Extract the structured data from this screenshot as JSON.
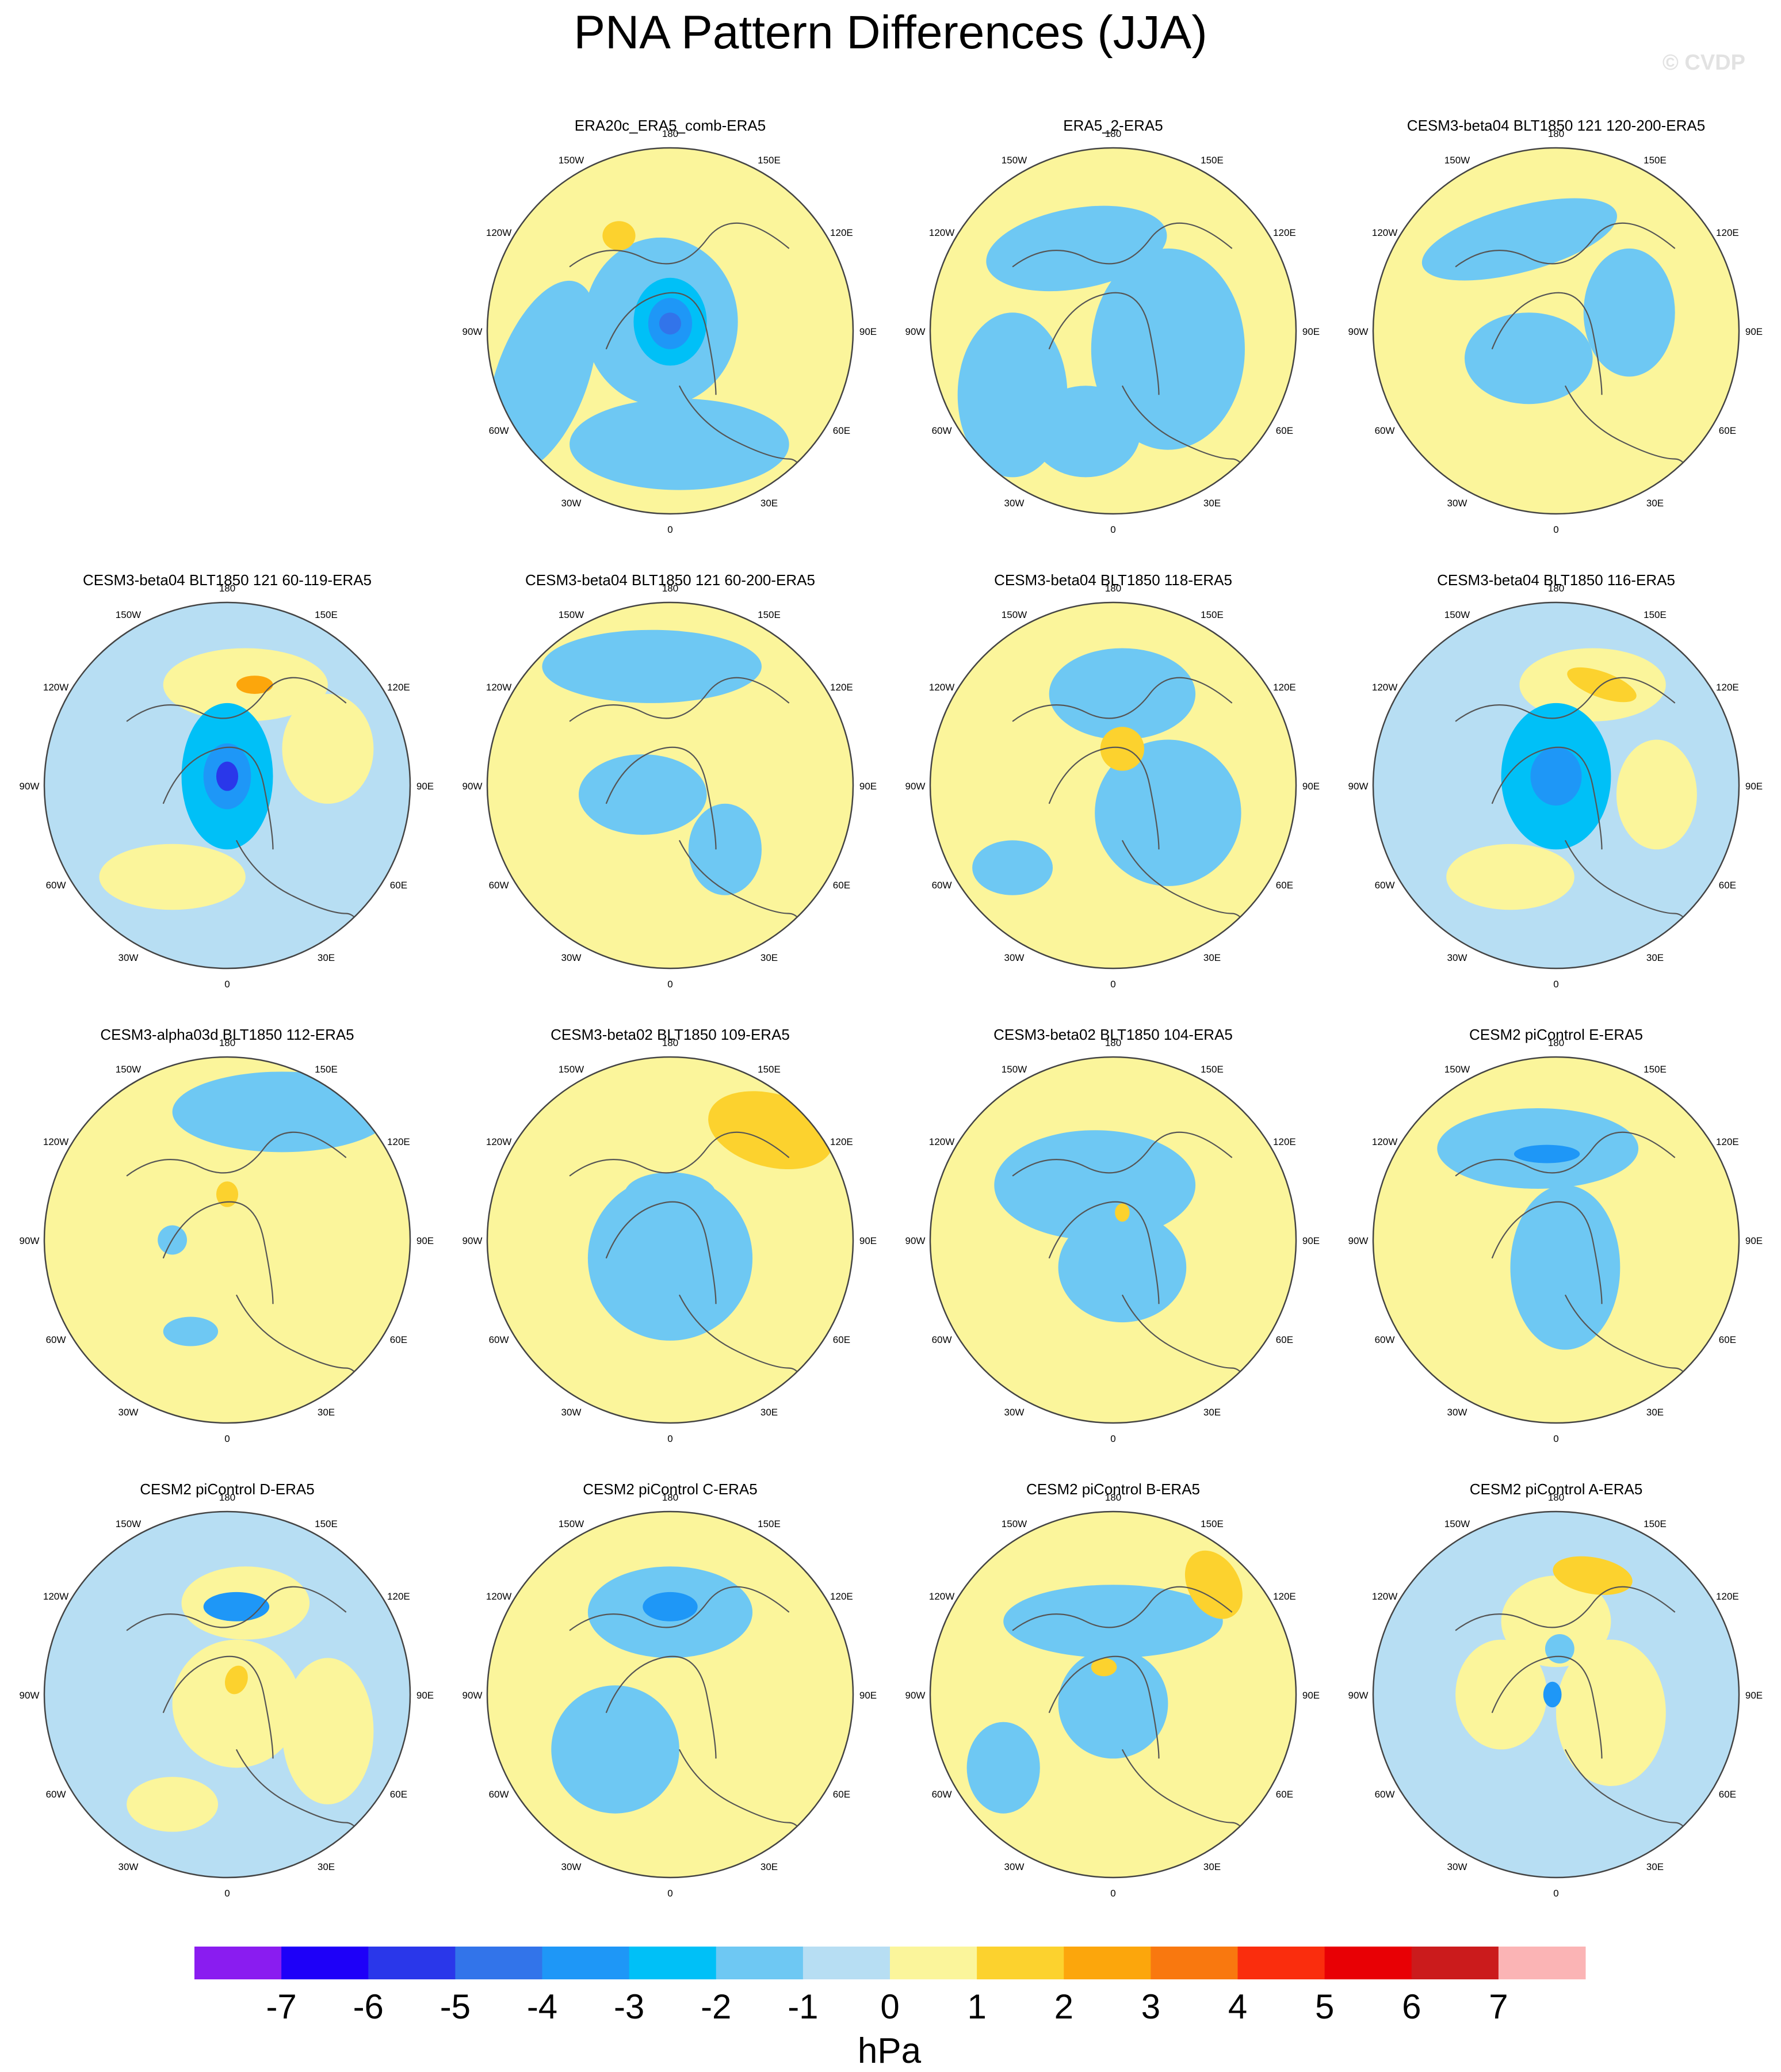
{
  "title": "PNA Pattern Differences (JJA)",
  "watermark": "© CVDP",
  "lon_labels": [
    "180",
    "150E",
    "120E",
    "90E",
    "60E",
    "30E",
    "0",
    "30W",
    "60W",
    "90W",
    "120W",
    "150W"
  ],
  "panels": [
    {
      "title": "ERA20c_ERA5_comb-ERA5",
      "background": "yellow"
    },
    {
      "title": "ERA5_2-ERA5",
      "background": "yellow"
    },
    {
      "title": "CESM3-beta04 BLT1850 121 120-200-ERA5",
      "background": "yellow"
    },
    {
      "title": "CESM3-beta04 BLT1850 121 60-119-ERA5",
      "background": "blue"
    },
    {
      "title": "CESM3-beta04 BLT1850 121 60-200-ERA5",
      "background": "yellow"
    },
    {
      "title": "CESM3-beta04 BLT1850 118-ERA5",
      "background": "yellow"
    },
    {
      "title": "CESM3-beta04 BLT1850 116-ERA5",
      "background": "blue"
    },
    {
      "title": "CESM3-alpha03d BLT1850 112-ERA5",
      "background": "yellow"
    },
    {
      "title": "CESM3-beta02 BLT1850 109-ERA5",
      "background": "yellow"
    },
    {
      "title": "CESM3-beta02 BLT1850 104-ERA5",
      "background": "yellow"
    },
    {
      "title": "CESM2 piControl E-ERA5",
      "background": "yellow"
    },
    {
      "title": "CESM2 piControl D-ERA5",
      "background": "blue"
    },
    {
      "title": "CESM2 piControl C-ERA5",
      "background": "yellow"
    },
    {
      "title": "CESM2 piControl B-ERA5",
      "background": "yellow"
    },
    {
      "title": "CESM2 piControl A-ERA5",
      "background": "blue"
    }
  ],
  "colorbar": {
    "label": "hPa",
    "tick_labels": [
      "-7",
      "-6",
      "-5",
      "-4",
      "-3",
      "-2",
      "-1",
      "0",
      "1",
      "2",
      "3",
      "4",
      "5",
      "6",
      "7"
    ],
    "colors": [
      "#8a1cf0",
      "#1e00f8",
      "#2a37ea",
      "#3274ea",
      "#1e97f7",
      "#00c0f7",
      "#6ec8f3",
      "#b7def3",
      "#fbf59b",
      "#fcd22e",
      "#fca60c",
      "#f9780f",
      "#fa2d0d",
      "#e80005",
      "#cb1b1c",
      "#fbb4b5"
    ]
  }
}
